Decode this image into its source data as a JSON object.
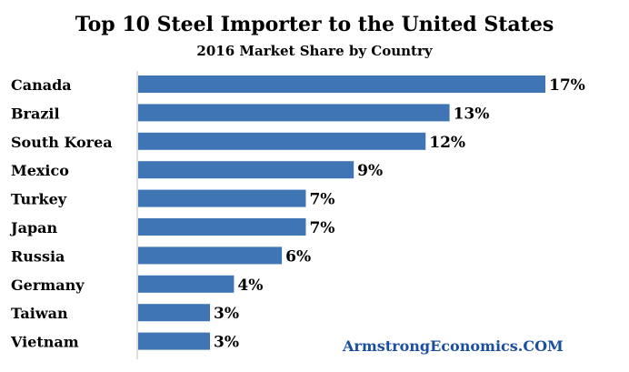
{
  "chart_data": {
    "type": "bar",
    "orientation": "horizontal",
    "title": "Top 10 Steel Importer to the United States",
    "subtitle": "2016 Market Share by Country",
    "categories": [
      "Canada",
      "Brazil",
      "South Korea",
      "Mexico",
      "Turkey",
      "Japan",
      "Russia",
      "Germany",
      "Taiwan",
      "Vietnam"
    ],
    "values": [
      17,
      13,
      12,
      9,
      7,
      7,
      6,
      4,
      3,
      3
    ],
    "data_labels": [
      "17%",
      "13%",
      "12%",
      "9%",
      "7%",
      "7%",
      "6%",
      "4%",
      "3%",
      "3%"
    ],
    "value_unit": "%",
    "xlim": [
      0,
      17
    ],
    "grid": false,
    "legend": "none",
    "bar_color": "#3f74b5"
  },
  "watermark": {
    "text": "ArmstrongEconomics.COM",
    "color": "#1a4fa0"
  }
}
